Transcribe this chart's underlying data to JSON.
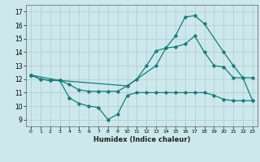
{
  "title": "",
  "xlabel": "Humidex (Indice chaleur)",
  "ylabel": "",
  "background_color": "#cce8ec",
  "grid_color": "#aacccc",
  "line_color": "#1a7a78",
  "xlim": [
    -0.5,
    23.5
  ],
  "ylim": [
    8.5,
    17.5
  ],
  "xticks": [
    0,
    1,
    2,
    3,
    4,
    5,
    6,
    7,
    8,
    9,
    10,
    11,
    12,
    13,
    14,
    15,
    16,
    17,
    18,
    19,
    20,
    21,
    22,
    23
  ],
  "yticks": [
    9,
    10,
    11,
    12,
    13,
    14,
    15,
    16,
    17
  ],
  "line1_x": [
    0,
    1,
    2,
    3,
    4,
    5,
    6,
    7,
    8,
    9,
    10,
    11,
    12,
    13,
    14,
    15,
    16,
    17,
    18,
    19,
    20,
    21,
    22,
    23
  ],
  "line1_y": [
    12.3,
    12.0,
    11.9,
    11.9,
    10.6,
    10.2,
    10.0,
    9.9,
    9.0,
    9.4,
    10.8,
    11.0,
    11.0,
    11.0,
    11.0,
    11.0,
    11.0,
    11.0,
    11.0,
    10.8,
    10.5,
    10.4,
    10.4,
    10.4
  ],
  "line2_x": [
    0,
    1,
    2,
    3,
    4,
    5,
    6,
    7,
    8,
    9,
    10,
    11,
    12,
    13,
    14,
    15,
    16,
    17,
    18,
    19,
    20,
    21,
    22,
    23
  ],
  "line2_y": [
    12.3,
    12.0,
    11.9,
    11.9,
    11.6,
    11.2,
    11.1,
    11.1,
    11.1,
    11.1,
    11.5,
    12.0,
    13.0,
    14.1,
    14.3,
    14.4,
    14.6,
    15.2,
    14.0,
    13.0,
    12.9,
    12.1,
    12.1,
    12.1
  ],
  "line3_x": [
    0,
    3,
    10,
    13,
    14,
    15,
    16,
    17,
    18,
    20,
    21,
    22,
    23
  ],
  "line3_y": [
    12.3,
    11.9,
    11.5,
    13.0,
    14.3,
    15.2,
    16.6,
    16.7,
    16.1,
    14.0,
    13.0,
    12.1,
    10.4
  ]
}
